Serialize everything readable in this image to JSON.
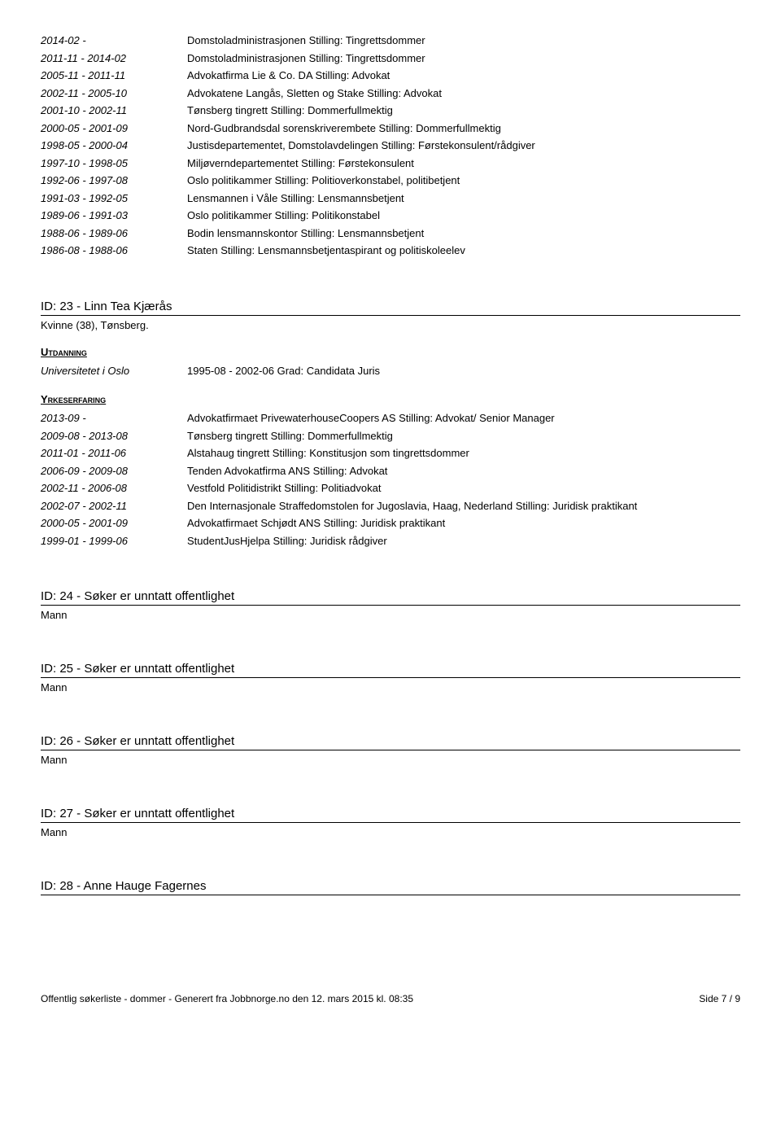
{
  "topEntries": [
    {
      "date": "2014-02 -",
      "text": "Domstoladministrasjonen Stilling: Tingrettsdommer"
    },
    {
      "date": "2011-11 - 2014-02",
      "text": "Domstoladministrasjonen Stilling: Tingrettsdommer"
    },
    {
      "date": "2005-11 - 2011-11",
      "text": "Advokatfirma Lie & Co. DA Stilling: Advokat"
    },
    {
      "date": "2002-11 - 2005-10",
      "text": "Advokatene Langås, Sletten og Stake Stilling: Advokat"
    },
    {
      "date": "2001-10 - 2002-11",
      "text": "Tønsberg tingrett Stilling: Dommerfullmektig"
    },
    {
      "date": "2000-05 - 2001-09",
      "text": "Nord-Gudbrandsdal sorenskriverembete Stilling: Dommerfullmektig"
    },
    {
      "date": "1998-05 - 2000-04",
      "text": "Justisdepartementet, Domstolavdelingen Stilling: Førstekonsulent/rådgiver"
    },
    {
      "date": "1997-10 - 1998-05",
      "text": "Miljøverndepartementet Stilling: Førstekonsulent"
    },
    {
      "date": "1992-06 - 1997-08",
      "text": "Oslo politikammer Stilling: Politioverkonstabel, politibetjent"
    },
    {
      "date": "1991-03 - 1992-05",
      "text": "Lensmannen i Våle Stilling: Lensmannsbetjent"
    },
    {
      "date": "1989-06 - 1991-03",
      "text": "Oslo politikammer Stilling: Politikonstabel"
    },
    {
      "date": "1988-06 - 1989-06",
      "text": "Bodin lensmannskontor Stilling: Lensmannsbetjent"
    },
    {
      "date": "1986-08 - 1988-06",
      "text": "Staten Stilling: Lensmannsbetjentaspirant og politiskoleelev"
    }
  ],
  "id23": {
    "header": "ID: 23 - Linn Tea Kjærås",
    "sub": "Kvinne (38), Tønsberg.",
    "utdanningLabel": "Utdanning",
    "utdanning": [
      {
        "date": "Universitetet i Oslo",
        "text": "1995-08 - 2002-06 Grad: Candidata Juris"
      }
    ],
    "yrkesLabel": "Yrkeserfaring",
    "yrkes": [
      {
        "date": "2013-09 -",
        "text": "Advokatfirmaet PrivewaterhouseCoopers AS Stilling: Advokat/ Senior Manager"
      },
      {
        "date": "2009-08 - 2013-08",
        "text": "Tønsberg tingrett Stilling: Dommerfullmektig"
      },
      {
        "date": "2011-01 - 2011-06",
        "text": "Alstahaug tingrett Stilling: Konstitusjon som tingrettsdommer"
      },
      {
        "date": "2006-09 - 2009-08",
        "text": "Tenden Advokatfirma ANS Stilling: Advokat"
      },
      {
        "date": "2002-11 - 2006-08",
        "text": "Vestfold Politidistrikt Stilling: Politiadvokat"
      },
      {
        "date": "2002-07 - 2002-11",
        "text": "Den Internasjonale Straffedomstolen for Jugoslavia, Haag, Nederland Stilling: Juridisk praktikant"
      },
      {
        "date": "2000-05 - 2001-09",
        "text": "Advokatfirmaet Schjødt ANS Stilling: Juridisk praktikant"
      },
      {
        "date": "1999-01 - 1999-06",
        "text": "StudentJusHjelpa Stilling: Juridisk rådgiver"
      }
    ]
  },
  "id24": {
    "header": "ID: 24 - Søker er unntatt offentlighet",
    "sub": "Mann"
  },
  "id25": {
    "header": "ID: 25 - Søker er unntatt offentlighet",
    "sub": "Mann"
  },
  "id26": {
    "header": "ID: 26 - Søker er unntatt offentlighet",
    "sub": "Mann"
  },
  "id27": {
    "header": "ID: 27 - Søker er unntatt offentlighet",
    "sub": "Mann"
  },
  "id28": {
    "header": "ID: 28 - Anne Hauge Fagernes"
  },
  "footer": {
    "left": "Offentlig søkerliste - dommer - Generert fra Jobbnorge.no den 12. mars 2015 kl. 08:35",
    "right": "Side 7 / 9"
  }
}
